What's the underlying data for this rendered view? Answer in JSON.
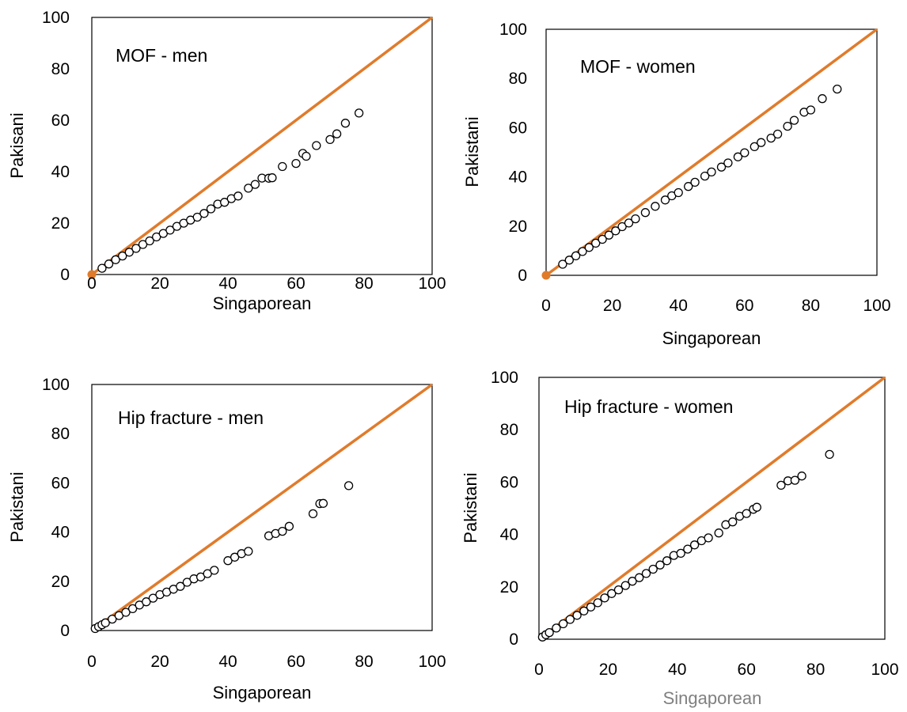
{
  "chart_data": [
    {
      "type": "scatter",
      "title": "MOF - men",
      "xlabel": "Singaporean",
      "ylabel": "Pakisani",
      "xlim": [
        0,
        100
      ],
      "ylim": [
        0,
        100
      ],
      "xticks": [
        "0",
        "20",
        "40",
        "60",
        "80",
        "100"
      ],
      "yticks": [
        "0",
        "20",
        "40",
        "60",
        "80",
        "100"
      ],
      "reference_line": {
        "from": [
          0,
          0
        ],
        "to": [
          100,
          100
        ],
        "color": "#e07b2b"
      },
      "series": [
        {
          "ratio_points": [
            [
              3,
              0.81
            ],
            [
              5,
              0.82
            ],
            [
              7,
              0.82
            ],
            [
              9,
              0.8
            ],
            [
              11,
              0.79
            ],
            [
              13,
              0.78
            ],
            [
              15,
              0.78
            ],
            [
              17,
              0.77
            ],
            [
              19,
              0.77
            ],
            [
              21,
              0.76
            ],
            [
              23,
              0.75
            ],
            [
              25,
              0.75
            ],
            [
              27,
              0.74
            ],
            [
              29,
              0.73
            ],
            [
              31,
              0.72
            ],
            [
              33,
              0.72
            ],
            [
              35,
              0.73
            ],
            [
              37,
              0.74
            ],
            [
              39,
              0.72
            ],
            [
              41,
              0.72
            ],
            [
              43,
              0.71
            ],
            [
              46,
              0.73
            ],
            [
              48,
              0.73
            ],
            [
              50,
              0.75
            ],
            [
              52,
              0.72
            ],
            [
              53,
              0.71
            ],
            [
              56,
              0.75
            ],
            [
              60,
              0.72
            ],
            [
              62,
              0.76
            ],
            [
              63,
              0.73
            ],
            [
              66,
              0.76
            ],
            [
              70,
              0.75
            ],
            [
              72,
              0.76
            ],
            [
              74.5,
              0.79
            ],
            [
              78.5,
              0.8
            ]
          ]
        }
      ]
    },
    {
      "type": "scatter",
      "title": "MOF - women",
      "xlabel": "Singaporean",
      "ylabel": "Pakistani",
      "xlim": [
        0,
        100
      ],
      "ylim": [
        0,
        100
      ],
      "xticks": [
        "0",
        "20",
        "40",
        "60",
        "80",
        "100"
      ],
      "yticks": [
        "0",
        "20",
        "40",
        "60",
        "80",
        "100"
      ],
      "reference_line": {
        "from": [
          0,
          0
        ],
        "to": [
          100,
          100
        ],
        "color": "#e07b2b"
      },
      "series": [
        {
          "ratio_points": [
            [
              5,
              0.9
            ],
            [
              7,
              0.88
            ],
            [
              9,
              0.88
            ],
            [
              11,
              0.88
            ],
            [
              13,
              0.87
            ],
            [
              15,
              0.87
            ],
            [
              17,
              0.86
            ],
            [
              19,
              0.86
            ],
            [
              21,
              0.86
            ],
            [
              23,
              0.86
            ],
            [
              25,
              0.85
            ],
            [
              27,
              0.85
            ],
            [
              30,
              0.85
            ],
            [
              33,
              0.85
            ],
            [
              36,
              0.85
            ],
            [
              38,
              0.85
            ],
            [
              40,
              0.84
            ],
            [
              43,
              0.84
            ],
            [
              45,
              0.84
            ],
            [
              48,
              0.84
            ],
            [
              50,
              0.84
            ],
            [
              53,
              0.83
            ],
            [
              55,
              0.83
            ],
            [
              58,
              0.83
            ],
            [
              60,
              0.83
            ],
            [
              63,
              0.83
            ],
            [
              65,
              0.83
            ],
            [
              68,
              0.82
            ],
            [
              70,
              0.82
            ],
            [
              73,
              0.83
            ],
            [
              75,
              0.84
            ],
            [
              78,
              0.85
            ],
            [
              80,
              0.84
            ],
            [
              83.5,
              0.86
            ],
            [
              88,
              0.86
            ]
          ]
        }
      ]
    },
    {
      "type": "scatter",
      "title": "Hip fracture - men",
      "xlabel": "Singaporean",
      "ylabel": "Pakistani",
      "xlim": [
        0,
        100
      ],
      "ylim": [
        0,
        100
      ],
      "xticks": [
        "0",
        "20",
        "40",
        "60",
        "80",
        "100"
      ],
      "yticks": [
        "0",
        "20",
        "40",
        "60",
        "80",
        "100"
      ],
      "reference_line": {
        "from": [
          0,
          0
        ],
        "to": [
          100,
          100
        ],
        "color": "#e07b2b"
      },
      "series": [
        {
          "ratio_points": [
            [
              1,
              0.79
            ],
            [
              2,
              0.78
            ],
            [
              3,
              0.78
            ],
            [
              4,
              0.78
            ],
            [
              6,
              0.77
            ],
            [
              8,
              0.76
            ],
            [
              10,
              0.74
            ],
            [
              12,
              0.74
            ],
            [
              14,
              0.74
            ],
            [
              16,
              0.73
            ],
            [
              18,
              0.73
            ],
            [
              20,
              0.73
            ],
            [
              22,
              0.71
            ],
            [
              24,
              0.7
            ],
            [
              26,
              0.69
            ],
            [
              28,
              0.7
            ],
            [
              30,
              0.7
            ],
            [
              32,
              0.68
            ],
            [
              34,
              0.68
            ],
            [
              36,
              0.68
            ],
            [
              40,
              0.71
            ],
            [
              42,
              0.71
            ],
            [
              44,
              0.71
            ],
            [
              46,
              0.7
            ],
            [
              52,
              0.74
            ],
            [
              54,
              0.73
            ],
            [
              56,
              0.72
            ],
            [
              58,
              0.73
            ],
            [
              65,
              0.73
            ],
            [
              67,
              0.77
            ],
            [
              68,
              0.76
            ],
            [
              75.5,
              0.78
            ]
          ]
        }
      ]
    },
    {
      "type": "scatter",
      "title": "Hip fracture - women",
      "xlabel": "Singaporean",
      "ylabel": "Pakistani",
      "xlim": [
        0,
        100
      ],
      "ylim": [
        0,
        100
      ],
      "xticks": [
        "0",
        "20",
        "40",
        "60",
        "80",
        "100"
      ],
      "yticks": [
        "0",
        "20",
        "40",
        "60",
        "80",
        "100"
      ],
      "reference_line": {
        "from": [
          0,
          0
        ],
        "to": [
          100,
          100
        ],
        "color": "#e07b2b"
      },
      "series": [
        {
          "ratio_points": [
            [
              1,
              0.86
            ],
            [
              2,
              0.86
            ],
            [
              3,
              0.85
            ],
            [
              5,
              0.85
            ],
            [
              7,
              0.84
            ],
            [
              9,
              0.84
            ],
            [
              11,
              0.83
            ],
            [
              13,
              0.83
            ],
            [
              15,
              0.82
            ],
            [
              17,
              0.82
            ],
            [
              19,
              0.83
            ],
            [
              21,
              0.83
            ],
            [
              23,
              0.82
            ],
            [
              25,
              0.82
            ],
            [
              27,
              0.82
            ],
            [
              29,
              0.81
            ],
            [
              31,
              0.81
            ],
            [
              33,
              0.81
            ],
            [
              35,
              0.81
            ],
            [
              37,
              0.81
            ],
            [
              39,
              0.82
            ],
            [
              41,
              0.8
            ],
            [
              43,
              0.8
            ],
            [
              45,
              0.8
            ],
            [
              47,
              0.8
            ],
            [
              49,
              0.79
            ],
            [
              52,
              0.78
            ],
            [
              54,
              0.81
            ],
            [
              56,
              0.8
            ],
            [
              58,
              0.81
            ],
            [
              60,
              0.8
            ],
            [
              62,
              0.8
            ],
            [
              63,
              0.8
            ],
            [
              70,
              0.84
            ],
            [
              72,
              0.84
            ],
            [
              74,
              0.82
            ],
            [
              76,
              0.82
            ],
            [
              84,
              0.84
            ]
          ]
        }
      ]
    }
  ]
}
